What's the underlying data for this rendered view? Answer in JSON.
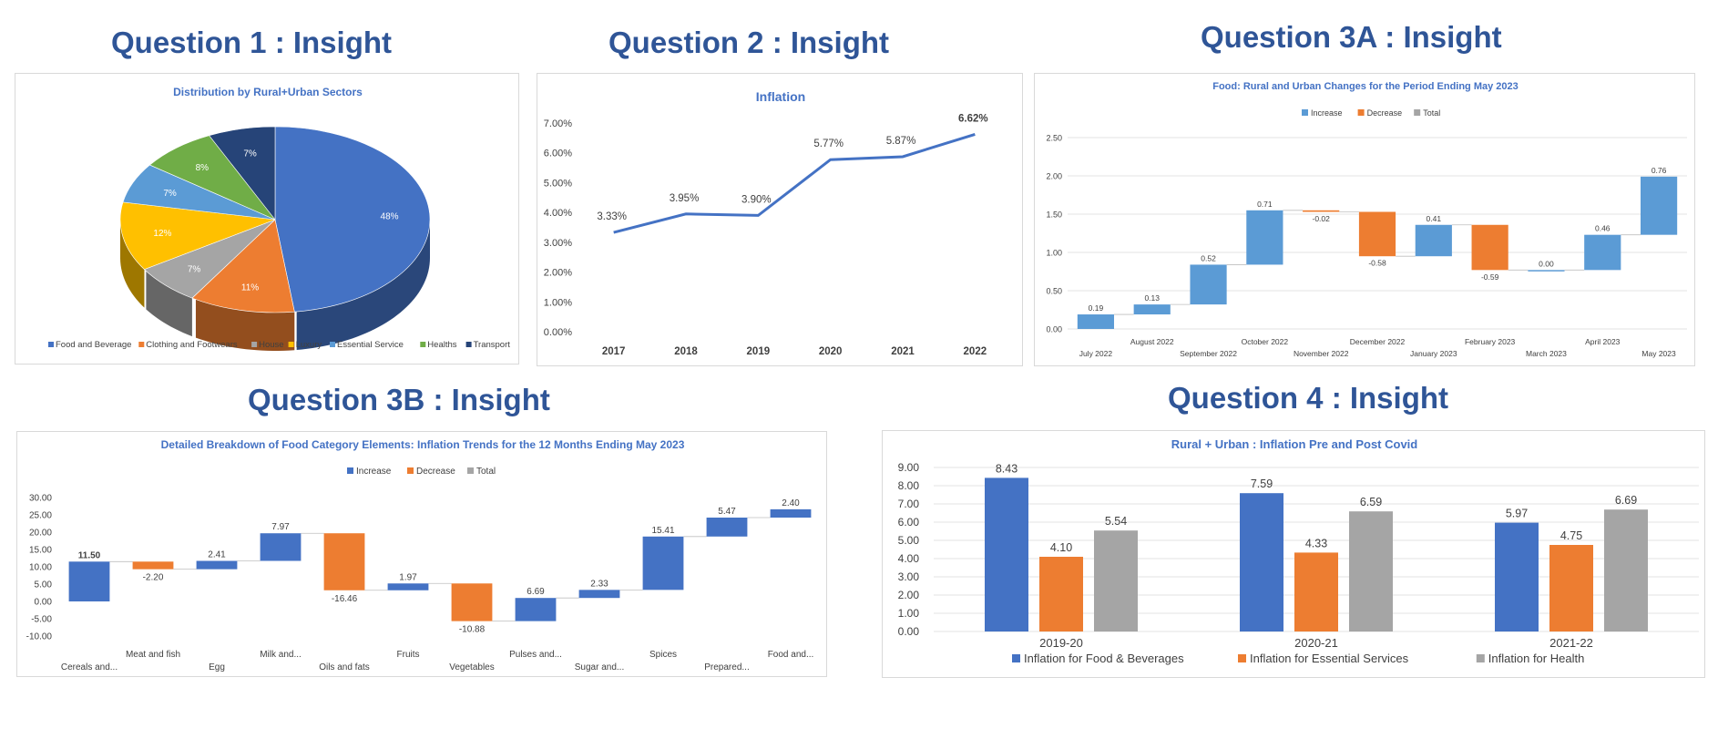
{
  "headings": {
    "q1": "Question 1 : Insight",
    "q2": "Question 2 : Insight",
    "q3a": "Question 3A : Insight",
    "q3b": "Question 3B : Insight",
    "q4": "Question 4 : Insight"
  },
  "chart_data": [
    {
      "id": "pie",
      "type": "pie",
      "title": "Distribution by Rural+Urban Sectors",
      "labels": [
        "Food and Beverage",
        "Clothing and Footwears",
        "House",
        "Luxury",
        "Essential Service",
        "Healths",
        "Transport"
      ],
      "values": [
        48,
        11,
        7,
        12,
        7,
        8,
        7
      ],
      "value_labels": [
        "48%",
        "11%",
        "7%",
        "12%",
        "7%",
        "8%",
        "7%"
      ],
      "colors": [
        "#4472c4",
        "#ed7d31",
        "#a5a5a5",
        "#ffc000",
        "#5b9bd5",
        "#70ad47",
        "#264478"
      ],
      "legend": "bottom"
    },
    {
      "id": "line",
      "type": "line",
      "title": "Inflation",
      "categories": [
        "2017",
        "2018",
        "2019",
        "2020",
        "2021",
        "2022"
      ],
      "values": [
        3.33,
        3.95,
        3.9,
        5.77,
        5.87,
        6.62
      ],
      "value_labels": [
        "3.33%",
        "3.95%",
        "3.90%",
        "5.77%",
        "5.87%",
        "6.62%"
      ],
      "y_ticks": [
        "0.00%",
        "1.00%",
        "2.00%",
        "3.00%",
        "4.00%",
        "5.00%",
        "6.00%",
        "7.00%"
      ],
      "ylim": [
        0,
        7
      ],
      "color": "#4472c4",
      "grid": false
    },
    {
      "id": "waterfall3a",
      "type": "bar",
      "subtype": "waterfall",
      "title": "Food: Rural and Urban Changes for the Period Ending May 2023",
      "legend_labels": [
        "Increase",
        "Decrease",
        "Total"
      ],
      "categories": [
        "July 2022",
        "August 2022",
        "September 2022",
        "October 2022",
        "November 2022",
        "December 2022",
        "January 2023",
        "February 2023",
        "March 2023",
        "April 2023",
        "May 2023"
      ],
      "values": [
        0.19,
        0.13,
        0.52,
        0.71,
        -0.02,
        -0.58,
        0.41,
        -0.59,
        0.0,
        0.46,
        0.76
      ],
      "value_labels": [
        "0.19",
        "0.13",
        "0.52",
        "0.71",
        "-0.02",
        "-0.58",
        "0.41",
        "-0.59",
        "0.00",
        "0.46",
        "0.76"
      ],
      "y_ticks": [
        "0.00",
        "0.50",
        "1.00",
        "1.50",
        "2.00",
        "2.50"
      ],
      "ylim": [
        0,
        2.5
      ],
      "colors": {
        "increase": "#5b9bd5",
        "decrease": "#ed7d31",
        "total": "#a5a5a5"
      },
      "grid": true,
      "legend": "top"
    },
    {
      "id": "waterfall3b",
      "type": "bar",
      "subtype": "waterfall",
      "title": "Detailed Breakdown of Food Category Elements: Inflation Trends for the 12 Months Ending May 2023",
      "legend_labels": [
        "Increase",
        "Decrease",
        "Total"
      ],
      "categories": [
        "Cereals and...",
        "Meat and fish",
        "Egg",
        "Milk and...",
        "Oils and fats",
        "Fruits",
        "Vegetables",
        "Pulses and...",
        "Sugar and...",
        "Spices",
        "Prepared...",
        "Food and..."
      ],
      "values": [
        11.5,
        -2.2,
        2.41,
        7.97,
        -16.46,
        1.97,
        -10.88,
        6.69,
        2.33,
        15.41,
        5.47,
        2.4
      ],
      "value_labels": [
        "11.50",
        "-2.20",
        "2.41",
        "7.97",
        "-16.46",
        "1.97",
        "-10.88",
        "6.69",
        "2.33",
        "15.41",
        "5.47",
        "2.40"
      ],
      "y_ticks": [
        "-10.00",
        "-5.00",
        "0.00",
        "5.00",
        "10.00",
        "15.00",
        "20.00",
        "25.00",
        "30.00"
      ],
      "ylim": [
        -10,
        30
      ],
      "colors": {
        "increase": "#4472c4",
        "decrease": "#ed7d31",
        "total": "#a5a5a5"
      },
      "legend": "top"
    },
    {
      "id": "grouped",
      "type": "bar",
      "title": "Rural + Urban : Inflation Pre and Post Covid",
      "categories": [
        "2019-20",
        "2020-21",
        "2021-22"
      ],
      "series": [
        {
          "name": "Inflation for Food & Beverages",
          "values": [
            8.43,
            7.59,
            5.97
          ],
          "value_labels": [
            "8.43",
            "7.59",
            "5.97"
          ],
          "color": "#4472c4"
        },
        {
          "name": "Inflation for Essential Services",
          "values": [
            4.1,
            4.33,
            4.75
          ],
          "value_labels": [
            "4.10",
            "4.33",
            "4.75"
          ],
          "color": "#ed7d31"
        },
        {
          "name": "Inflation for Health",
          "values": [
            5.54,
            6.59,
            6.69
          ],
          "value_labels": [
            "5.54",
            "6.59",
            "6.69"
          ],
          "color": "#a5a5a5"
        }
      ],
      "y_ticks": [
        "0.00",
        "1.00",
        "2.00",
        "3.00",
        "4.00",
        "5.00",
        "6.00",
        "7.00",
        "8.00",
        "9.00"
      ],
      "ylim": [
        0,
        9
      ],
      "grid": true,
      "legend": "bottom"
    }
  ]
}
